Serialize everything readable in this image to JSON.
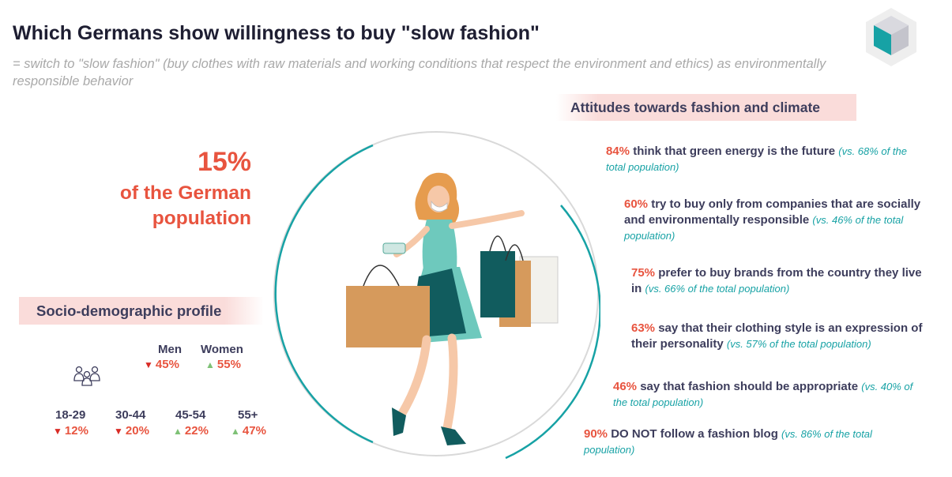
{
  "header": {
    "title": "Which Germans show willingness to buy \"slow fashion\"",
    "subtitle": "= switch to \"slow fashion\" (buy clothes with raw materials and working conditions that respect the environment and ethics) as environmentally responsible behavior"
  },
  "headline": {
    "percent": "15%",
    "label": "of the German population"
  },
  "profile": {
    "title": "Socio-demographic profile",
    "gender": [
      {
        "label": "Men",
        "value": "45%",
        "direction": "down"
      },
      {
        "label": "Women",
        "value": "55%",
        "direction": "up"
      }
    ],
    "age": [
      {
        "label": "18-29",
        "value": "12%",
        "direction": "down"
      },
      {
        "label": "30-44",
        "value": "20%",
        "direction": "down"
      },
      {
        "label": "45-54",
        "value": "22%",
        "direction": "up"
      },
      {
        "label": "55+",
        "value": "47%",
        "direction": "up"
      }
    ]
  },
  "attitudes": {
    "title": "Attitudes towards fashion and climate",
    "items": [
      {
        "pct": "84%",
        "text": " think that green energy is the future ",
        "comparison": "(vs. 68% of the total population)"
      },
      {
        "pct": "60%",
        "text": " try to buy only from companies that are socially and environmentally responsible ",
        "comparison": "(vs. 46% of the total population)"
      },
      {
        "pct": "75%",
        "text": " prefer to buy brands from the country they live in ",
        "comparison": "(vs. 66% of the total population)"
      },
      {
        "pct": "63%",
        "text": " say that their clothing style is an expression of their personality ",
        "comparison": "(vs. 57% of the total population)"
      },
      {
        "pct": "46%",
        "text": " say that fashion should be appropriate ",
        "comparison": "(vs. 40% of the total population)"
      },
      {
        "pct": "90%",
        "text": " DO NOT follow a fashion blog ",
        "comparison": "(vs. 86% of the total population)"
      }
    ]
  },
  "colors": {
    "accent": "#e8543f",
    "teal": "#17a2a5",
    "band": "#fadcda",
    "text": "#3d3d5c",
    "down": "#d92b25",
    "up": "#7ec176"
  },
  "icons": {
    "logo": "cube-logo-icon",
    "people": "people-group-icon",
    "illustration": "shopping-woman-illustration"
  }
}
